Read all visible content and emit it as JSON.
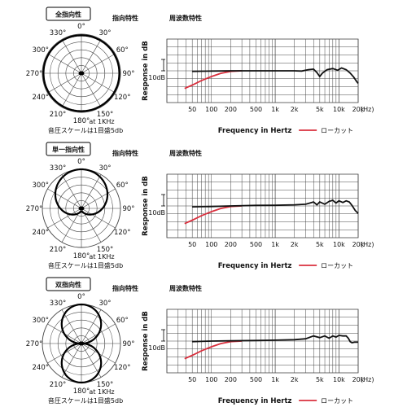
{
  "common": {
    "pattern_heading": "指向特性",
    "freq_heading": "周波数特性",
    "ylabel": "Response in dB",
    "xlabel": "Frequency in Hertz",
    "legend_lowcut": "ローカット",
    "db_label": "10dB",
    "at_label": "at 1KHz",
    "scale_note": "音圧スケールは1目盛5db",
    "xticks": [
      "50",
      "100",
      "200",
      "500",
      "1k",
      "2k",
      "5k",
      "10k",
      "20k"
    ],
    "xunit": "(Hz)",
    "angle_labels": [
      "0°",
      "30°",
      "60°",
      "90°",
      "120°",
      "150°",
      "180°",
      "210°",
      "240°",
      "270°",
      "300°",
      "330°"
    ],
    "colors": {
      "flat": "#111111",
      "lowcut": "#d9303e",
      "grid": "#444444"
    }
  },
  "blocks": [
    {
      "label": "全指向性",
      "pattern": "omni"
    },
    {
      "label": "単一指向性",
      "pattern": "cardioid"
    },
    {
      "label": "双指向性",
      "pattern": "figure8"
    }
  ]
}
